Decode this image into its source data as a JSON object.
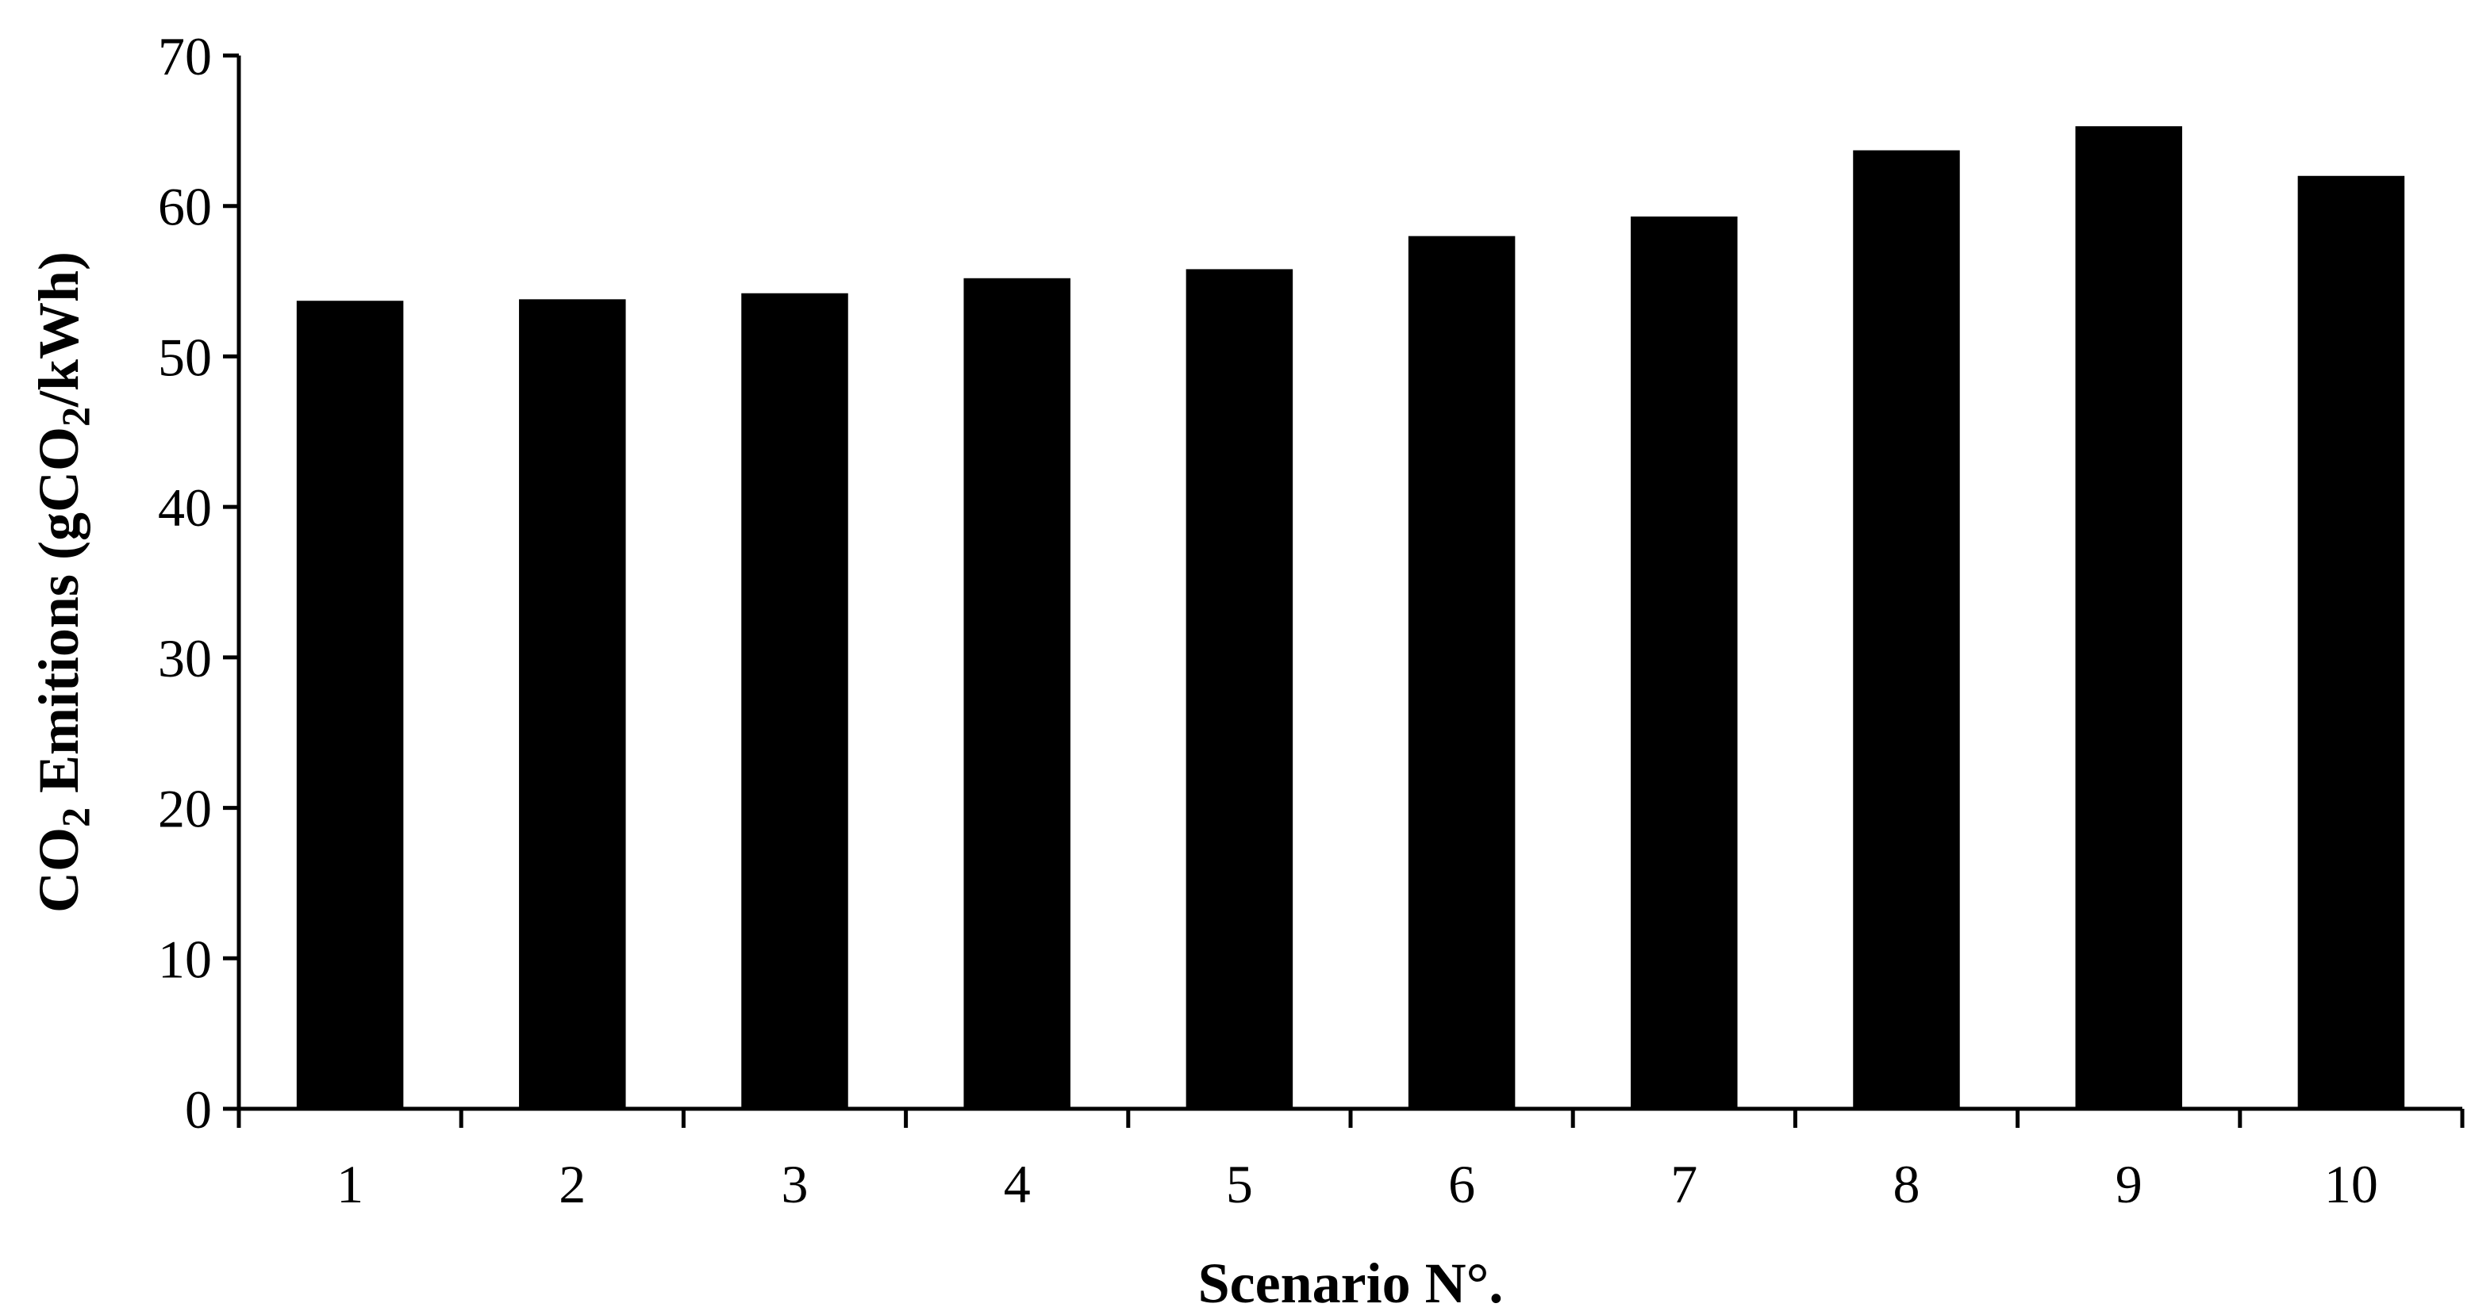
{
  "chart_data": {
    "type": "bar",
    "categories": [
      "1",
      "2",
      "3",
      "4",
      "5",
      "6",
      "7",
      "8",
      "9",
      "10"
    ],
    "values": [
      53.7,
      53.8,
      54.2,
      55.2,
      55.8,
      58.0,
      59.3,
      63.7,
      65.3,
      62.0
    ],
    "xlabel": "Scenario N°.",
    "ylabel": {
      "prefix": "CO",
      "sub1": "2",
      "middle": " Emitions (gCO",
      "sub2": "2",
      "suffix": "/kWh)"
    },
    "ylim": [
      0,
      70
    ],
    "yticks": [
      "0",
      "10",
      "20",
      "30",
      "40",
      "50",
      "60",
      "70"
    ],
    "bar_color": "#000000",
    "grid": false,
    "legend": "none"
  }
}
